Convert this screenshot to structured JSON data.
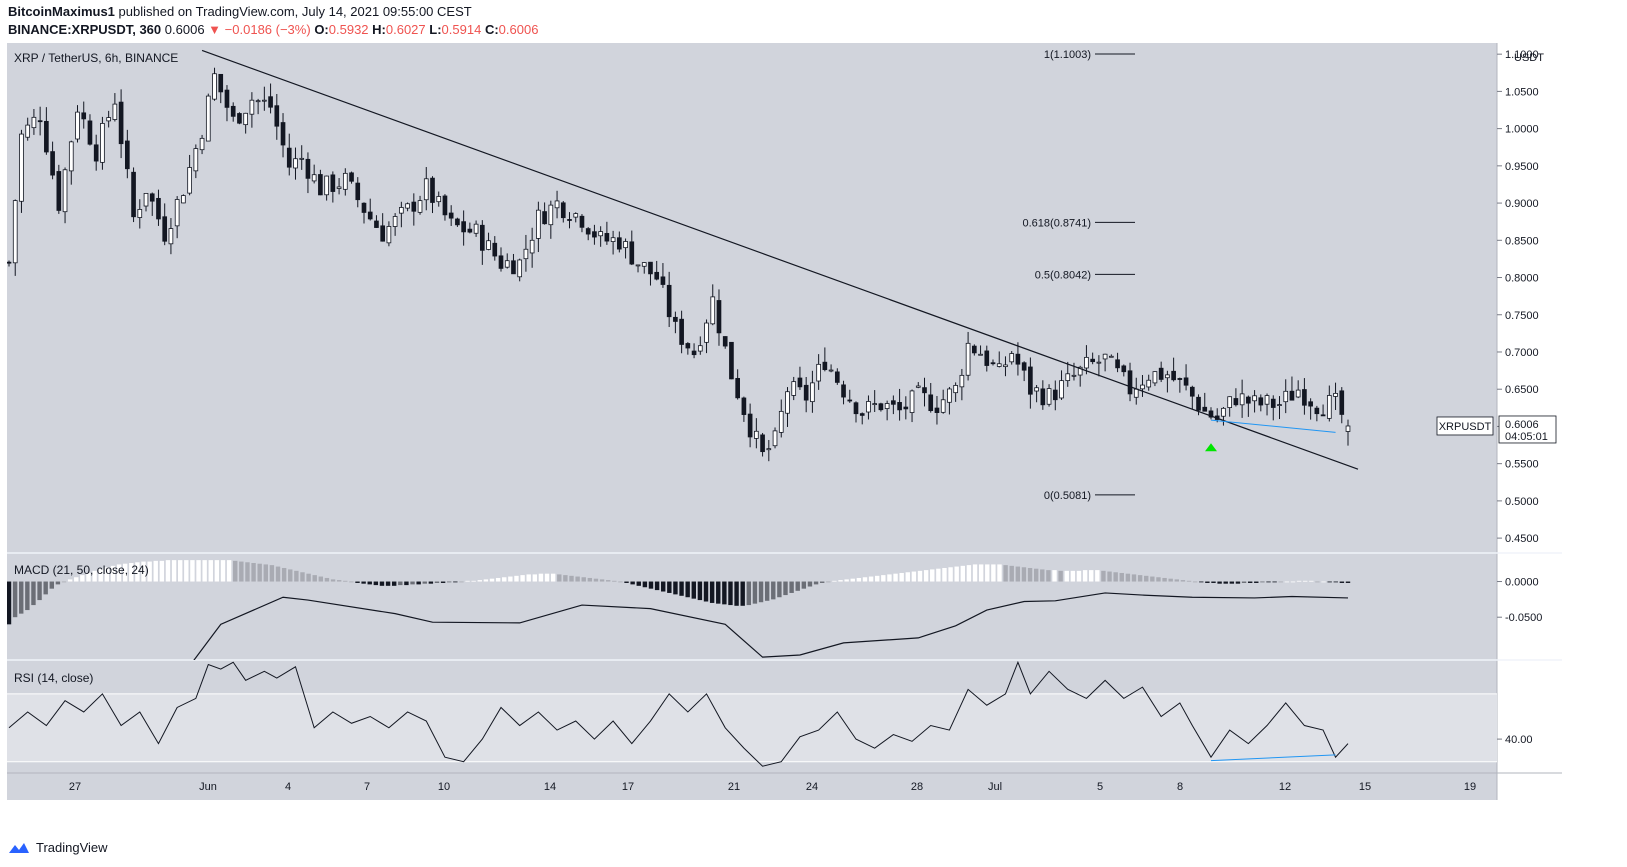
{
  "header": {
    "author": "BitcoinMaximus1",
    "published_text": "published on TradingView.com, July 14, 2021 09:55:00 CEST",
    "symbol": "BINANCE:XRPUSDT, 360",
    "last": "0.6006",
    "change": "−0.0186 (−3%)",
    "o_label": "O:",
    "o": "0.5932",
    "h_label": "H:",
    "h": "0.6027",
    "l_label": "L:",
    "l": "0.5914",
    "c_label": "C:",
    "c": "0.6006"
  },
  "chart_data": {
    "type": "candlestick",
    "title": "XRP / TetherUS, 6h, BINANCE",
    "unit": "USDT",
    "ylim": [
      0.43,
      1.115
    ],
    "y_ticks": [
      "1.1000",
      "1.0500",
      "1.0000",
      "0.9500",
      "0.9000",
      "0.8500",
      "0.8000",
      "0.7500",
      "0.7000",
      "0.6500",
      "0.6000",
      "0.5500",
      "0.5000",
      "0.4500"
    ],
    "x_ticks": [
      "27",
      "Jun",
      "4",
      "7",
      "10",
      "14",
      "17",
      "21",
      "24",
      "28",
      "Jul",
      "5",
      "8",
      "12",
      "15",
      "19"
    ],
    "ohlc_anchor_points": [
      {
        "t": 0,
        "p": 0.82
      },
      {
        "t": 2,
        "p": 0.99
      },
      {
        "t": 5,
        "p": 1.02
      },
      {
        "t": 8,
        "p": 0.9
      },
      {
        "t": 11,
        "p": 1.03
      },
      {
        "t": 14,
        "p": 0.97
      },
      {
        "t": 17,
        "p": 1.04
      },
      {
        "t": 20,
        "p": 0.88
      },
      {
        "t": 22,
        "p": 0.92
      },
      {
        "t": 25,
        "p": 0.86
      },
      {
        "t": 28,
        "p": 0.92
      },
      {
        "t": 31,
        "p": 1.0
      },
      {
        "t": 33,
        "p": 1.07
      },
      {
        "t": 36,
        "p": 1.01
      },
      {
        "t": 39,
        "p": 1.04
      },
      {
        "t": 42,
        "p": 1.03
      },
      {
        "t": 45,
        "p": 0.95
      },
      {
        "t": 47,
        "p": 0.96
      },
      {
        "t": 50,
        "p": 0.92
      },
      {
        "t": 54,
        "p": 0.93
      },
      {
        "t": 58,
        "p": 0.88
      },
      {
        "t": 60,
        "p": 0.86
      },
      {
        "t": 64,
        "p": 0.89
      },
      {
        "t": 67,
        "p": 0.92
      },
      {
        "t": 71,
        "p": 0.87
      },
      {
        "t": 75,
        "p": 0.86
      },
      {
        "t": 79,
        "p": 0.82
      },
      {
        "t": 82,
        "p": 0.82
      },
      {
        "t": 85,
        "p": 0.88
      },
      {
        "t": 88,
        "p": 0.9
      },
      {
        "t": 92,
        "p": 0.88
      },
      {
        "t": 95,
        "p": 0.85
      },
      {
        "t": 98,
        "p": 0.85
      },
      {
        "t": 101,
        "p": 0.82
      },
      {
        "t": 104,
        "p": 0.8
      },
      {
        "t": 107,
        "p": 0.73
      },
      {
        "t": 110,
        "p": 0.7
      },
      {
        "t": 113,
        "p": 0.77
      },
      {
        "t": 116,
        "p": 0.67
      },
      {
        "t": 119,
        "p": 0.6
      },
      {
        "t": 121,
        "p": 0.56
      },
      {
        "t": 123,
        "p": 0.58
      },
      {
        "t": 125,
        "p": 0.65
      },
      {
        "t": 128,
        "p": 0.64
      },
      {
        "t": 131,
        "p": 0.69
      },
      {
        "t": 134,
        "p": 0.65
      },
      {
        "t": 137,
        "p": 0.62
      },
      {
        "t": 140,
        "p": 0.63
      },
      {
        "t": 143,
        "p": 0.62
      },
      {
        "t": 146,
        "p": 0.64
      },
      {
        "t": 149,
        "p": 0.63
      },
      {
        "t": 152,
        "p": 0.65
      },
      {
        "t": 154,
        "p": 0.71
      },
      {
        "t": 156,
        "p": 0.7
      },
      {
        "t": 159,
        "p": 0.67
      },
      {
        "t": 161,
        "p": 0.7
      },
      {
        "t": 164,
        "p": 0.65
      },
      {
        "t": 167,
        "p": 0.64
      },
      {
        "t": 170,
        "p": 0.66
      },
      {
        "t": 173,
        "p": 0.68
      },
      {
        "t": 176,
        "p": 0.69
      },
      {
        "t": 178,
        "p": 0.67
      },
      {
        "t": 180,
        "p": 0.65
      },
      {
        "t": 183,
        "p": 0.67
      },
      {
        "t": 186,
        "p": 0.67
      },
      {
        "t": 189,
        "p": 0.65
      },
      {
        "t": 192,
        "p": 0.62
      },
      {
        "t": 194,
        "p": 0.61
      },
      {
        "t": 197,
        "p": 0.64
      },
      {
        "t": 200,
        "p": 0.63
      },
      {
        "t": 204,
        "p": 0.63
      },
      {
        "t": 207,
        "p": 0.65
      },
      {
        "t": 210,
        "p": 0.63
      },
      {
        "t": 213,
        "p": 0.63
      },
      {
        "t": 215,
        "p": 0.6
      }
    ],
    "fibonacci": [
      {
        "label": "1(1.1003)",
        "value": 1.1003
      },
      {
        "label": "0.618(0.8741)",
        "value": 0.8741
      },
      {
        "label": "0.5(0.8042)",
        "value": 0.8042
      },
      {
        "label": "0(0.5081)",
        "value": 0.5081
      }
    ],
    "trendline": {
      "from": {
        "t": 31,
        "p": 1.105
      },
      "to": {
        "t": 215,
        "p": 0.5385
      }
    },
    "divergence_line_price": {
      "from": {
        "t": 193,
        "p": 0.6085
      },
      "to": {
        "t": 213,
        "p": 0.592
      }
    },
    "bullish_marker": {
      "t": 193,
      "p": 0.572
    },
    "last_price": {
      "symbol": "XRPUSDT",
      "value": "0.6006",
      "countdown": "04:05:01"
    },
    "macd": {
      "label": "MACD (21, 50, close, 24)",
      "ylim": [
        -0.11,
        0.04
      ],
      "y_ticks": [
        "0.0000",
        "-0.0500"
      ],
      "line": [
        {
          "t": 0,
          "v": -0.16
        },
        {
          "t": 28,
          "v": -0.13
        },
        {
          "t": 34,
          "v": -0.06
        },
        {
          "t": 44,
          "v": -0.022
        },
        {
          "t": 48,
          "v": -0.026
        },
        {
          "t": 62,
          "v": -0.045
        },
        {
          "t": 68,
          "v": -0.057
        },
        {
          "t": 82,
          "v": -0.058
        },
        {
          "t": 92,
          "v": -0.033
        },
        {
          "t": 103,
          "v": -0.038
        },
        {
          "t": 115,
          "v": -0.06
        },
        {
          "t": 121,
          "v": -0.106
        },
        {
          "t": 127,
          "v": -0.103
        },
        {
          "t": 134,
          "v": -0.086
        },
        {
          "t": 146,
          "v": -0.079
        },
        {
          "t": 152,
          "v": -0.062
        },
        {
          "t": 157,
          "v": -0.04
        },
        {
          "t": 163,
          "v": -0.028
        },
        {
          "t": 168,
          "v": -0.027
        },
        {
          "t": 176,
          "v": -0.016
        },
        {
          "t": 182,
          "v": -0.019
        },
        {
          "t": 190,
          "v": -0.022
        },
        {
          "t": 200,
          "v": -0.023
        },
        {
          "t": 206,
          "v": -0.021
        },
        {
          "t": 215,
          "v": -0.023
        }
      ],
      "histogram": [
        -0.06,
        -0.05,
        -0.045,
        -0.04,
        -0.033,
        -0.026,
        -0.018,
        -0.01,
        -0.004,
        0.0,
        0.003,
        0.006,
        0.009,
        0.012,
        0.015,
        0.018,
        0.02,
        0.022,
        0.024,
        0.025,
        0.026,
        0.027,
        0.028,
        0.028,
        0.029,
        0.029,
        0.03,
        0.03,
        0.03,
        0.03,
        0.03,
        0.03,
        0.03,
        0.03,
        0.03,
        0.03,
        0.03,
        0.029,
        0.028,
        0.027,
        0.026,
        0.025,
        0.024,
        0.023,
        0.021,
        0.019,
        0.017,
        0.015,
        0.013,
        0.011,
        0.009,
        0.007,
        0.005,
        0.003,
        0.002,
        0.001,
        0.0,
        -0.002,
        -0.003,
        -0.004,
        -0.005,
        -0.006,
        -0.006,
        -0.006,
        -0.005,
        -0.005,
        -0.004,
        -0.004,
        -0.003,
        -0.003,
        -0.002,
        -0.002,
        -0.001,
        -0.001,
        0.0,
        0.001,
        0.001,
        0.002,
        0.003,
        0.004,
        0.005,
        0.006,
        0.007,
        0.008,
        0.009,
        0.01,
        0.01,
        0.011,
        0.011,
        0.011,
        0.01,
        0.009,
        0.008,
        0.007,
        0.006,
        0.005,
        0.004,
        0.003,
        0.002,
        0.001,
        0.0,
        -0.002,
        -0.004,
        -0.006,
        -0.008,
        -0.01,
        -0.012,
        -0.014,
        -0.016,
        -0.018,
        -0.02,
        -0.022,
        -0.024,
        -0.026,
        -0.028,
        -0.03,
        -0.031,
        -0.032,
        -0.033,
        -0.034,
        -0.034,
        -0.033,
        -0.031,
        -0.029,
        -0.027,
        -0.025,
        -0.022,
        -0.019,
        -0.016,
        -0.013,
        -0.01,
        -0.007,
        -0.004,
        -0.002,
        0.0,
        0.001,
        0.002,
        0.003,
        0.004,
        0.005,
        0.006,
        0.007,
        0.008,
        0.009,
        0.01,
        0.011,
        0.012,
        0.013,
        0.014,
        0.015,
        0.016,
        0.017,
        0.018,
        0.019,
        0.02,
        0.021,
        0.022,
        0.023,
        0.024,
        0.024,
        0.024,
        0.024,
        0.024,
        0.023,
        0.022,
        0.021,
        0.02,
        0.019,
        0.018,
        0.017,
        0.016,
        0.016,
        0.015,
        0.015,
        0.015,
        0.015,
        0.016,
        0.016,
        0.016,
        0.015,
        0.014,
        0.013,
        0.012,
        0.011,
        0.01,
        0.009,
        0.008,
        0.007,
        0.006,
        0.005,
        0.004,
        0.003,
        0.002,
        0.001,
        0.0,
        -0.001,
        -0.002,
        -0.002,
        -0.003,
        -0.003,
        -0.003,
        -0.003,
        -0.002,
        -0.002,
        -0.002,
        -0.001,
        -0.001,
        -0.001,
        0.0,
        0.0,
        0.0,
        0.001,
        0.001,
        0.001,
        0.0,
        0.0,
        -0.001,
        -0.001,
        -0.002,
        -0.002
      ]
    },
    "rsi": {
      "label": "RSI (14, close)",
      "ylim": [
        25,
        75
      ],
      "y_ticks": [
        "40.00"
      ],
      "band": [
        30,
        60
      ],
      "line": [
        {
          "t": 0,
          "v": 45
        },
        {
          "t": 3,
          "v": 52
        },
        {
          "t": 6,
          "v": 46
        },
        {
          "t": 9,
          "v": 57
        },
        {
          "t": 12,
          "v": 52
        },
        {
          "t": 15,
          "v": 60
        },
        {
          "t": 18,
          "v": 46
        },
        {
          "t": 21,
          "v": 52
        },
        {
          "t": 24,
          "v": 38
        },
        {
          "t": 27,
          "v": 54
        },
        {
          "t": 30,
          "v": 58
        },
        {
          "t": 32,
          "v": 73
        },
        {
          "t": 34,
          "v": 71
        },
        {
          "t": 36,
          "v": 74
        },
        {
          "t": 38,
          "v": 66
        },
        {
          "t": 41,
          "v": 70
        },
        {
          "t": 43,
          "v": 67
        },
        {
          "t": 46,
          "v": 72
        },
        {
          "t": 49,
          "v": 45
        },
        {
          "t": 52,
          "v": 52
        },
        {
          "t": 55,
          "v": 47
        },
        {
          "t": 58,
          "v": 50
        },
        {
          "t": 61,
          "v": 45
        },
        {
          "t": 64,
          "v": 52
        },
        {
          "t": 67,
          "v": 48
        },
        {
          "t": 70,
          "v": 32
        },
        {
          "t": 73,
          "v": 30
        },
        {
          "t": 76,
          "v": 40
        },
        {
          "t": 79,
          "v": 54
        },
        {
          "t": 82,
          "v": 46
        },
        {
          "t": 85,
          "v": 52
        },
        {
          "t": 88,
          "v": 44
        },
        {
          "t": 91,
          "v": 48
        },
        {
          "t": 94,
          "v": 40
        },
        {
          "t": 97,
          "v": 48
        },
        {
          "t": 100,
          "v": 38
        },
        {
          "t": 103,
          "v": 48
        },
        {
          "t": 106,
          "v": 60
        },
        {
          "t": 109,
          "v": 52
        },
        {
          "t": 112,
          "v": 60
        },
        {
          "t": 115,
          "v": 45
        },
        {
          "t": 118,
          "v": 36
        },
        {
          "t": 121,
          "v": 28
        },
        {
          "t": 124,
          "v": 30
        },
        {
          "t": 127,
          "v": 41
        },
        {
          "t": 130,
          "v": 44
        },
        {
          "t": 133,
          "v": 52
        },
        {
          "t": 136,
          "v": 40
        },
        {
          "t": 139,
          "v": 36
        },
        {
          "t": 142,
          "v": 42
        },
        {
          "t": 145,
          "v": 39
        },
        {
          "t": 148,
          "v": 46
        },
        {
          "t": 151,
          "v": 44
        },
        {
          "t": 154,
          "v": 62
        },
        {
          "t": 157,
          "v": 55
        },
        {
          "t": 160,
          "v": 60
        },
        {
          "t": 162,
          "v": 74
        },
        {
          "t": 164,
          "v": 60
        },
        {
          "t": 167,
          "v": 70
        },
        {
          "t": 170,
          "v": 62
        },
        {
          "t": 173,
          "v": 58
        },
        {
          "t": 176,
          "v": 66
        },
        {
          "t": 179,
          "v": 58
        },
        {
          "t": 182,
          "v": 63
        },
        {
          "t": 185,
          "v": 50
        },
        {
          "t": 188,
          "v": 56
        },
        {
          "t": 190,
          "v": 46
        },
        {
          "t": 193,
          "v": 32
        },
        {
          "t": 196,
          "v": 44
        },
        {
          "t": 199,
          "v": 38
        },
        {
          "t": 202,
          "v": 46
        },
        {
          "t": 205,
          "v": 56
        },
        {
          "t": 208,
          "v": 46
        },
        {
          "t": 211,
          "v": 44
        },
        {
          "t": 213,
          "v": 32
        },
        {
          "t": 215,
          "v": 38
        }
      ],
      "divergence_line": {
        "from": {
          "t": 193,
          "v": 30.5
        },
        "to": {
          "t": 213,
          "v": 33
        }
      }
    }
  },
  "footer": {
    "logo_text": "TradingView"
  }
}
